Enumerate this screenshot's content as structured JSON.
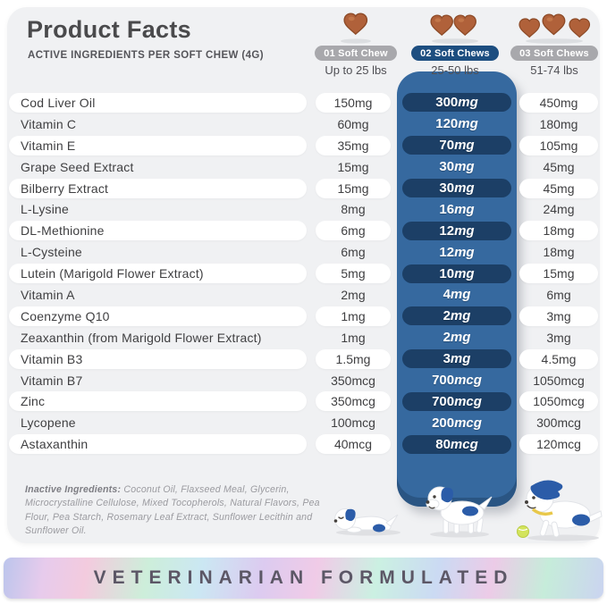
{
  "header": {
    "title": "Product Facts",
    "subtitle": "ACTIVE INGREDIENTS PER SOFT CHEW (4G)"
  },
  "dosage_columns": [
    {
      "badge": "01 Soft Chew",
      "weight": "Up to 25 lbs",
      "chews": 1,
      "highlighted": false
    },
    {
      "badge": "02 Soft Chews",
      "weight": "25-50 lbs",
      "chews": 2,
      "highlighted": true
    },
    {
      "badge": "03 Soft Chews",
      "weight": "51-74 lbs",
      "chews": 3,
      "highlighted": false
    }
  ],
  "ingredients": [
    {
      "name": "Cod Liver Oil",
      "dose_1_chew": "150mg",
      "dose_2_chews": "300mg",
      "dose_3_chews": "450mg"
    },
    {
      "name": "Vitamin C",
      "dose_1_chew": "60mg",
      "dose_2_chews": "120mg",
      "dose_3_chews": "180mg"
    },
    {
      "name": "Vitamin E",
      "dose_1_chew": "35mg",
      "dose_2_chews": "70mg",
      "dose_3_chews": "105mg"
    },
    {
      "name": "Grape Seed Extract",
      "dose_1_chew": "15mg",
      "dose_2_chews": "30mg",
      "dose_3_chews": "45mg"
    },
    {
      "name": "Bilberry Extract",
      "dose_1_chew": "15mg",
      "dose_2_chews": "30mg",
      "dose_3_chews": "45mg"
    },
    {
      "name": "L-Lysine",
      "dose_1_chew": "8mg",
      "dose_2_chews": "16mg",
      "dose_3_chews": "24mg"
    },
    {
      "name": "DL-Methionine",
      "dose_1_chew": "6mg",
      "dose_2_chews": "12mg",
      "dose_3_chews": "18mg"
    },
    {
      "name": "L-Cysteine",
      "dose_1_chew": "6mg",
      "dose_2_chews": "12mg",
      "dose_3_chews": "18mg"
    },
    {
      "name": "Lutein (Marigold Flower Extract)",
      "dose_1_chew": "5mg",
      "dose_2_chews": "10mg",
      "dose_3_chews": "15mg"
    },
    {
      "name": "Vitamin A",
      "dose_1_chew": "2mg",
      "dose_2_chews": "4mg",
      "dose_3_chews": "6mg"
    },
    {
      "name": "Coenzyme Q10",
      "dose_1_chew": "1mg",
      "dose_2_chews": "2mg",
      "dose_3_chews": "3mg"
    },
    {
      "name": "Zeaxanthin (from Marigold Flower Extract)",
      "dose_1_chew": "1mg",
      "dose_2_chews": "2mg",
      "dose_3_chews": "3mg"
    },
    {
      "name": "Vitamin B3",
      "dose_1_chew": "1.5mg",
      "dose_2_chews": "3mg",
      "dose_3_chews": "4.5mg"
    },
    {
      "name": "Vitamin B7",
      "dose_1_chew": "350mcg",
      "dose_2_chews": "700mcg",
      "dose_3_chews": "1050mcg"
    },
    {
      "name": "Zinc",
      "dose_1_chew": "350mcg",
      "dose_2_chews": "700mcg",
      "dose_3_chews": "1050mcg"
    },
    {
      "name": "Lycopene",
      "dose_1_chew": "100mcg",
      "dose_2_chews": "200mcg",
      "dose_3_chews": "300mcg"
    },
    {
      "name": "Astaxanthin",
      "dose_1_chew": "40mcg",
      "dose_2_chews": "80mcg",
      "dose_3_chews": "120mcg"
    }
  ],
  "inactive_ingredients": {
    "label": "Inactive Ingredients:",
    "text": " Coconut Oil, Flaxseed Meal, Glycerin, Microcrystalline Cellulose, Mixed Tocopherols, Natural Flavors, Pea Flour, Pea Starch, Rosemary Leaf Extract, Sunflower Lecithin and Sunflower Oil."
  },
  "banner": {
    "text": "VETERINARIAN FORMULATED"
  },
  "colors": {
    "card_bg": "#f0f1f3",
    "panel_blue": "#36699f",
    "dose_pill_navy": "#1c3f66",
    "badge_blue": "#1d4e80",
    "badge_gray": "#a8a8ac",
    "chew_brown": "#b0613a",
    "dog_blue": "#2b5ca8",
    "collar_yellow": "#e8c84a",
    "ball_green": "#d3e45c"
  }
}
